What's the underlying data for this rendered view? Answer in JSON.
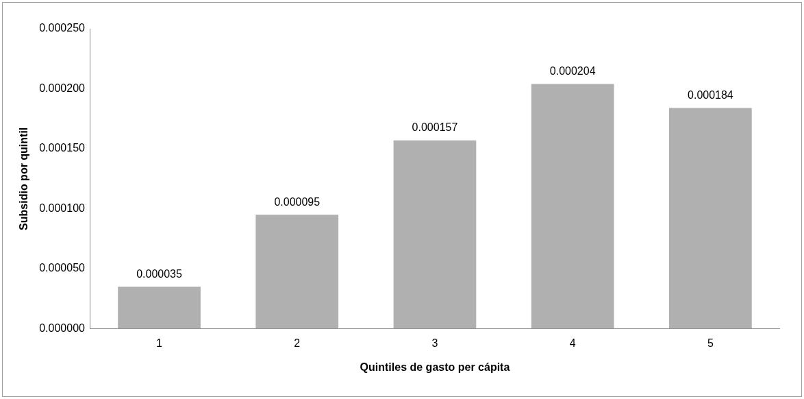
{
  "chart_data": {
    "type": "bar",
    "xlabel": "Quintiles de gasto per cápita",
    "ylabel": "Subsidio por quintil",
    "categories": [
      "1",
      "2",
      "3",
      "4",
      "5"
    ],
    "values": [
      3.5e-05,
      9.5e-05,
      0.000157,
      0.000204,
      0.000184
    ],
    "value_labels": [
      "0.000035",
      "0.000095",
      "0.000157",
      "0.000204",
      "0.000184"
    ],
    "color": "#b0b0b0",
    "ylim": [
      0,
      0.00025
    ],
    "yticks": [
      {
        "value": 0,
        "label": "0.000000"
      },
      {
        "value": 5e-05,
        "label": "0.000050"
      },
      {
        "value": 0.0001,
        "label": "0.000100"
      },
      {
        "value": 0.00015,
        "label": "0.000150"
      },
      {
        "value": 0.0002,
        "label": "0.000200"
      },
      {
        "value": 0.00025,
        "label": "0.000250"
      }
    ],
    "grid": false,
    "legend": false
  }
}
